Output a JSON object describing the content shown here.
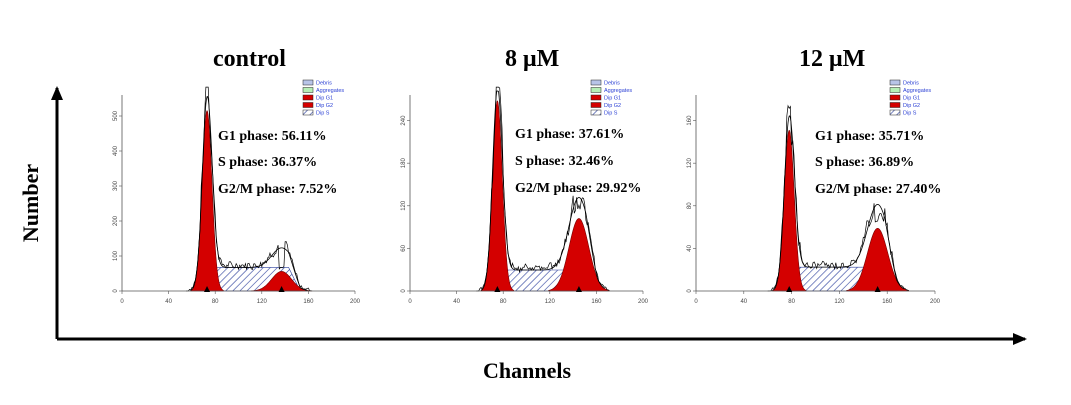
{
  "figure": {
    "y_title": "Number",
    "x_title": "Channels"
  },
  "legend_entries": [
    {
      "label": "Debris",
      "color": "#b8c4e8"
    },
    {
      "label": "Aggregates",
      "color": "#b6efb6"
    },
    {
      "label": "Dip G1",
      "color": "#d40000"
    },
    {
      "label": "Dip G2",
      "color": "#d40000"
    },
    {
      "label": "Dip S",
      "color": "hatch"
    }
  ],
  "chart_data": [
    {
      "type": "area",
      "title": "control",
      "x_ticks": [
        0,
        40,
        80,
        120,
        160,
        200
      ],
      "x_range": [
        0,
        200
      ],
      "stats": [
        "G1 phase: 56.11%",
        "S phase: 36.37%",
        "G2/M phase: 7.52%"
      ],
      "g1_phase_percent": 56.11,
      "s_phase_percent": 36.37,
      "g2m_phase_percent": 7.52,
      "g1_peak_channel": 73,
      "g2_peak_channel": 137,
      "g1_peak_height": 0.92,
      "g2_peak_height": 0.1
    },
    {
      "type": "area",
      "title": "8 μM",
      "x_ticks": [
        0,
        40,
        80,
        120,
        160,
        200
      ],
      "x_range": [
        0,
        200
      ],
      "stats": [
        "G1 phase: 37.61%",
        "S phase: 32.46%",
        "G2/M phase: 29.92%"
      ],
      "g1_phase_percent": 37.61,
      "s_phase_percent": 32.46,
      "g2m_phase_percent": 29.92,
      "g1_peak_channel": 75,
      "g2_peak_channel": 145,
      "g1_peak_height": 0.97,
      "g2_peak_height": 0.37
    },
    {
      "type": "area",
      "title": "12 μM",
      "x_ticks": [
        0,
        40,
        80,
        120,
        160,
        200
      ],
      "x_range": [
        0,
        200
      ],
      "stats": [
        "G1 phase: 35.71%",
        "S phase: 36.89%",
        "G2/M phase: 27.40%"
      ],
      "g1_phase_percent": 35.71,
      "s_phase_percent": 36.89,
      "g2m_phase_percent": 27.4,
      "g1_peak_channel": 78,
      "g2_peak_channel": 152,
      "g1_peak_height": 0.82,
      "g2_peak_height": 0.32
    }
  ]
}
